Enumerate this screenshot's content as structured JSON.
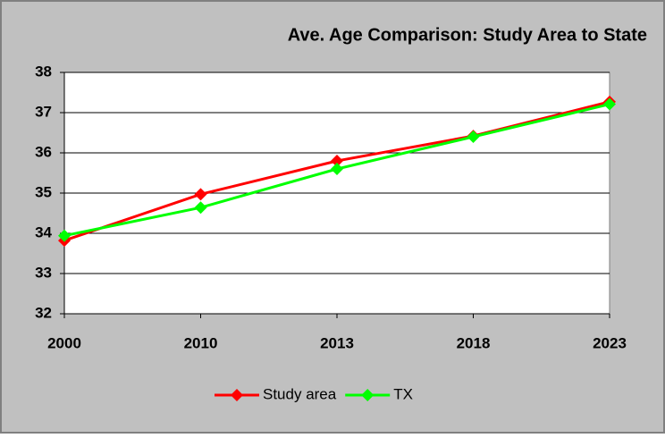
{
  "chart_data": {
    "type": "line",
    "title": "Ave. Age Comparison: Study Area to State",
    "categories": [
      "2000",
      "2010",
      "2013",
      "2018",
      "2023"
    ],
    "series": [
      {
        "name": "Study area",
        "color": "#ff0000",
        "values": [
          33.82,
          34.97,
          35.8,
          36.42,
          37.27
        ]
      },
      {
        "name": "TX",
        "color": "#00ff00",
        "values": [
          33.94,
          34.64,
          35.6,
          36.4,
          37.21
        ]
      }
    ],
    "ylim": [
      32,
      38
    ],
    "yticks": [
      32,
      33,
      34,
      35,
      36,
      37,
      38
    ],
    "grid": true,
    "legend": "bottom"
  }
}
